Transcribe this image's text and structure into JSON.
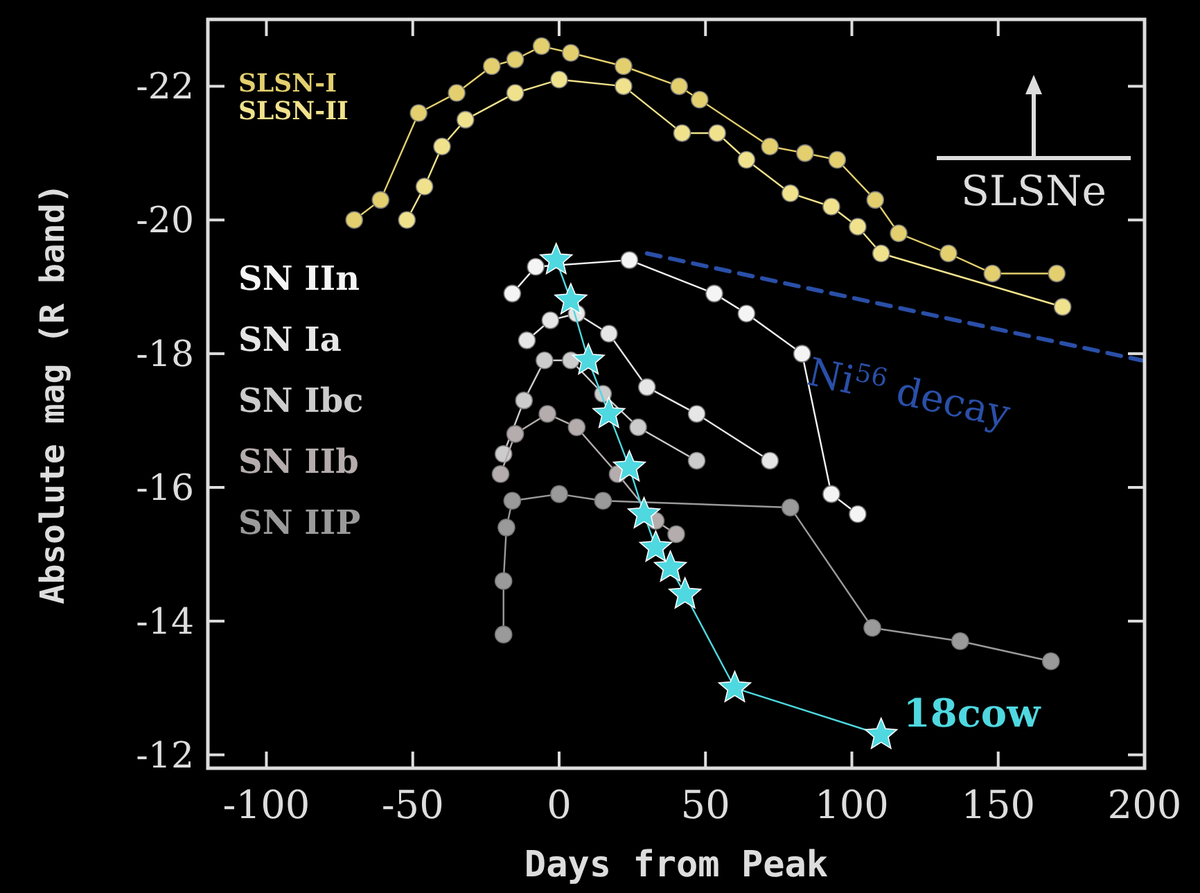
{
  "chart_data": {
    "type": "line",
    "xlabel": "Days from Peak",
    "ylabel": "Absolute mag (R band)",
    "xlim": [
      -120,
      200
    ],
    "ylim": [
      -11.8,
      -23
    ],
    "xticks": [
      -100,
      -50,
      0,
      50,
      100,
      150,
      200
    ],
    "yticks": [
      -22,
      -20,
      -18,
      -16,
      -14,
      -12
    ],
    "legend": "left",
    "marker": "circle",
    "line_style": "solid",
    "annotations": [
      "SLSNe"
    ],
    "series": [
      {
        "name": "SLSN-I",
        "color": "#e3cf6e",
        "x": [
          -70,
          -61,
          -48,
          -35,
          -23,
          -15,
          -6,
          4,
          22,
          41,
          48,
          72,
          84,
          95,
          108,
          116,
          133,
          148,
          170
        ],
        "values": [
          -20.0,
          -20.3,
          -21.6,
          -21.9,
          -22.3,
          -22.4,
          -22.6,
          -22.5,
          -22.3,
          -22.0,
          -21.8,
          -21.1,
          -21.0,
          -20.9,
          -20.3,
          -19.8,
          -19.5,
          -19.2,
          -19.2
        ]
      },
      {
        "name": "SLSN-II",
        "color": "#f0e28c",
        "x": [
          -52,
          -46,
          -40,
          -32,
          -15,
          0,
          22,
          42,
          54,
          64,
          79,
          93,
          102,
          110,
          172
        ],
        "values": [
          -20.0,
          -20.5,
          -21.1,
          -21.5,
          -21.9,
          -22.1,
          -22.0,
          -21.3,
          -21.3,
          -20.9,
          -20.4,
          -20.2,
          -19.9,
          -19.5,
          -18.7
        ]
      },
      {
        "name": "SN IIn",
        "color": "#f4f4f4",
        "x": [
          -16,
          -8,
          0,
          24,
          53,
          64,
          83,
          93,
          102
        ],
        "values": [
          -18.9,
          -19.3,
          null,
          -19.4,
          -18.9,
          -18.6,
          -18.0,
          -15.9,
          -15.6
        ]
      },
      {
        "name": "SN Ia",
        "color": "#e6e6e6",
        "x": [
          -11,
          -3,
          6,
          17,
          30,
          47,
          72
        ],
        "values": [
          -18.2,
          -18.5,
          -18.6,
          -18.3,
          -17.5,
          -17.1,
          -16.4
        ]
      },
      {
        "name": "SN Ibc",
        "color": "#cccccc",
        "x": [
          -19,
          -12,
          -5,
          4,
          15,
          27,
          47
        ],
        "values": [
          -16.5,
          -17.3,
          -17.9,
          -17.9,
          -17.4,
          -16.9,
          -16.4
        ]
      },
      {
        "name": "SN IIb",
        "color": "#b5adad",
        "x": [
          -20,
          -15,
          -4,
          6,
          20,
          33,
          40
        ],
        "values": [
          -16.2,
          -16.8,
          -17.1,
          -16.9,
          -16.2,
          -15.5,
          -15.3
        ]
      },
      {
        "name": "SN IIP",
        "color": "#9a9a9a",
        "x": [
          -19,
          -19,
          -18,
          -16,
          0,
          15,
          79,
          107,
          137,
          168
        ],
        "values": [
          -13.8,
          -14.6,
          -15.4,
          -15.8,
          -15.9,
          -15.8,
          -15.7,
          -13.9,
          -13.7,
          -13.4
        ]
      },
      {
        "name": "18cow",
        "color": "#4fd8e0",
        "marker": "star",
        "x": [
          -1,
          4,
          10,
          17,
          24,
          29,
          33,
          38,
          43,
          60,
          110
        ],
        "values": [
          -19.4,
          -18.8,
          -17.9,
          -17.1,
          -16.3,
          -15.6,
          -15.1,
          -14.8,
          -14.4,
          -13.0,
          -12.3
        ]
      },
      {
        "name": "Ni$^{56}$ decay",
        "color": "#2a4fa8",
        "marker": "none",
        "line_style": "dashed",
        "x": [
          30,
          199
        ],
        "values": [
          -19.5,
          -17.9
        ]
      }
    ]
  }
}
